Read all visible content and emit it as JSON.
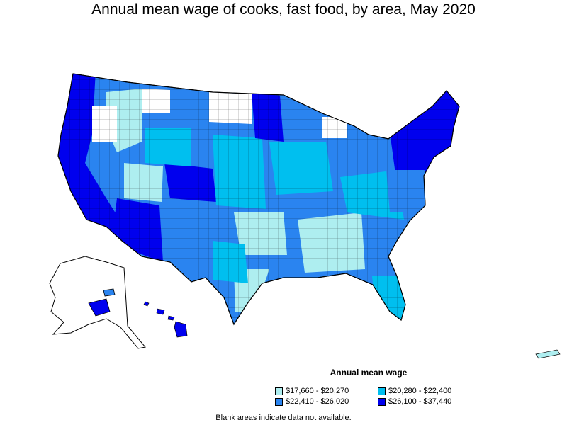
{
  "title": "Annual mean wage of cooks, fast food, by area, May 2020",
  "legend": {
    "title": "Annual mean wage",
    "items": [
      {
        "label": "$17,660 - $20,270",
        "color": "#aeeef0"
      },
      {
        "label": "$20,280 - $22,400",
        "color": "#00bfef"
      },
      {
        "label": "$22,410 - $26,020",
        "color": "#2a84f0"
      },
      {
        "label": "$26,100 - $37,440",
        "color": "#0000ee"
      }
    ]
  },
  "footnote": "Blank areas indicate data not available.",
  "colors": {
    "blank": "#ffffff",
    "border": "#000000"
  }
}
